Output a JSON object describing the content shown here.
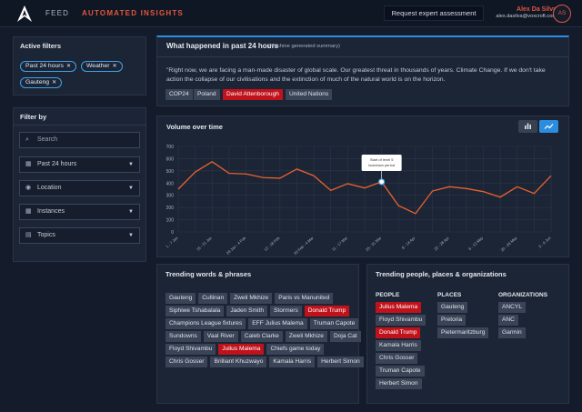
{
  "nav": {
    "feed": "FEED",
    "automated_insights": "AUTOMATED INSIGHTS"
  },
  "header": {
    "request_button": "Request expert assessment",
    "user_name": "Alex Da Silva",
    "user_email": "alex.dasilva@voxcroft.com",
    "avatar_initials": "AS"
  },
  "active_filters": {
    "title": "Active filters",
    "chips": [
      "Past 24 hours",
      "Weather",
      "Gauteng"
    ]
  },
  "filter_by": {
    "title": "Filter by",
    "search_placeholder": "Search",
    "time": "Past 24 hours",
    "location": "Location",
    "instances": "Instances",
    "topics": "Topics"
  },
  "summary": {
    "title": "What happened in past 24 hours",
    "subtitle": "(Machine generated summary)",
    "quote": "\"Right now, we are facing a man-made disaster of global scale. Our greatest threat in thousands of years. Climate Change. If we don't take action the collapse of our civilisations and the extinction of much of the natural world is on the horizon.",
    "tags": [
      {
        "label": "COP24",
        "highlight": false
      },
      {
        "label": "Poland",
        "highlight": false
      },
      {
        "label": "David Attenborough",
        "highlight": true
      },
      {
        "label": "United Nations",
        "highlight": false
      }
    ]
  },
  "volume": {
    "title": "Volume over time",
    "toggle_icons": [
      "bar-chart-icon",
      "line-chart-icon"
    ],
    "active_toggle": "line-chart-icon"
  },
  "chart_data": {
    "type": "line",
    "title": "Volume over time",
    "x": [
      "1 - 7 Jan",
      "",
      "15 - 21 Jan",
      "",
      "29 Jan - 4 Feb",
      "",
      "12 - 18 Feb",
      "",
      "26 Feb - 4 Mar",
      "",
      "11 - 17 Mar",
      "",
      "25 - 31 Mar",
      "",
      "8 - 14 Apr",
      "",
      "22 - 28 Apr",
      "",
      "6 - 12 May",
      "",
      "20 - 26 May",
      "",
      "3 - 9 Jun"
    ],
    "series": [
      {
        "values": [
          350,
          490,
          575,
          480,
          475,
          445,
          440,
          515,
          460,
          340,
          395,
          360,
          410,
          215,
          150,
          335,
          370,
          355,
          330,
          285,
          370,
          315,
          460
        ]
      }
    ],
    "ylim": [
      0,
      700
    ],
    "yticks": [
      0,
      100,
      200,
      300,
      400,
      500,
      600,
      700
    ],
    "annotation": {
      "text": "Start of level 5 lockdown period",
      "index": 12
    },
    "grid": true,
    "color": "#e8612f"
  },
  "trending_words": {
    "title": "Trending words & phrases",
    "tags": [
      {
        "label": "Gauteng",
        "highlight": false
      },
      {
        "label": "Cullinan",
        "highlight": false
      },
      {
        "label": "Zweli Mkhize",
        "highlight": false
      },
      {
        "label": "Paris vs Manunited",
        "highlight": false
      },
      {
        "label": "Siphiwe Tshabalala",
        "highlight": false
      },
      {
        "label": "Jaden Smith",
        "highlight": false
      },
      {
        "label": "Stormers",
        "highlight": false
      },
      {
        "label": "Donald Trump",
        "highlight": true
      },
      {
        "label": "Champions League fixtures",
        "highlight": false
      },
      {
        "label": "EFF Julius Malema",
        "highlight": false
      },
      {
        "label": "Truman Capote",
        "highlight": false
      },
      {
        "label": "Sundowns",
        "highlight": false
      },
      {
        "label": "Vaal River",
        "highlight": false
      },
      {
        "label": "Caleb Clarke",
        "highlight": false
      },
      {
        "label": "Zweli Mkhize",
        "highlight": false
      },
      {
        "label": "Doja Cat",
        "highlight": false
      },
      {
        "label": "Floyd Shivambu",
        "highlight": false
      },
      {
        "label": "Julius Malema",
        "highlight": true
      },
      {
        "label": "Chiefs game today",
        "highlight": false
      },
      {
        "label": "Chris Gosser",
        "highlight": false
      },
      {
        "label": "Brilliant Khuzwayo",
        "highlight": false
      },
      {
        "label": "Kamala Harris",
        "highlight": false
      },
      {
        "label": "Herbert Simon",
        "highlight": false
      }
    ]
  },
  "trending_entities": {
    "title": "Trending people, places & organizations",
    "people_title": "PEOPLE",
    "places_title": "PLACES",
    "orgs_title": "ORGANIZATIONS",
    "people": [
      {
        "label": "Julius Malema",
        "highlight": true
      },
      {
        "label": "Floyd Shivambu",
        "highlight": false
      },
      {
        "label": "Donald Trump",
        "highlight": true
      },
      {
        "label": "Kamala Harris",
        "highlight": false
      },
      {
        "label": "Chris Gosser",
        "highlight": false
      },
      {
        "label": "Truman Capote",
        "highlight": false
      },
      {
        "label": "Herbert Simon",
        "highlight": false
      }
    ],
    "places": [
      {
        "label": "Gauteng",
        "highlight": false
      },
      {
        "label": "Pretoria",
        "highlight": false
      },
      {
        "label": "Pietermaritzburg",
        "highlight": false
      }
    ],
    "organizations": [
      {
        "label": "ANCYL",
        "highlight": false
      },
      {
        "label": "ANC",
        "highlight": false
      },
      {
        "label": "Garmin",
        "highlight": false
      }
    ]
  }
}
